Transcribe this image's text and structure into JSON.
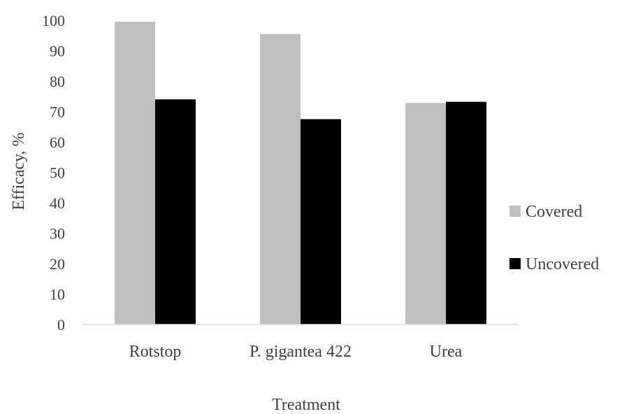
{
  "chart_data": {
    "type": "bar",
    "title": "",
    "xlabel": "Treatment",
    "ylabel": "Efficacy, %",
    "categories": [
      "Rotstop",
      "P. gigantea 422",
      "Urea"
    ],
    "series": [
      {
        "name": "Covered",
        "color": "#bfbfbf",
        "values": [
          99.5,
          95.5,
          72.8
        ]
      },
      {
        "name": "Uncovered",
        "color": "#000000",
        "values": [
          74.0,
          67.5,
          73.2
        ]
      }
    ],
    "ylim": [
      0,
      100
    ],
    "yticks": [
      "0",
      "10",
      "20",
      "30",
      "40",
      "50",
      "60",
      "70",
      "80",
      "90",
      "100"
    ],
    "grid": false,
    "legend_position": "right"
  }
}
